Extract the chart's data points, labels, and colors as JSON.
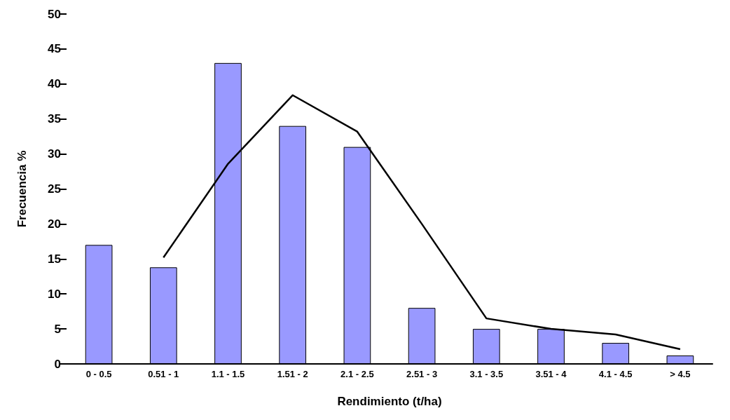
{
  "chart_data": {
    "type": "bar",
    "xlabel": "Rendimiento (t/ha)",
    "ylabel": "Frecuencia %",
    "categories": [
      "0 - 0.5",
      "0.51 - 1",
      "1.1 - 1.5",
      "1.51 - 2",
      "2.1 - 2.5",
      "2.51 - 3",
      "3.1 - 3.5",
      "3.51 - 4",
      "4.1 - 4.5",
      "> 4.5"
    ],
    "series": [
      {
        "color": "#9999ff",
        "values": [
          17,
          13.8,
          43,
          34,
          31,
          8,
          5,
          5,
          3,
          1.2
        ]
      },
      {
        "type": "line",
        "color": "#000000",
        "values": [
          null,
          15.2,
          28.6,
          38.4,
          33.2,
          20,
          6.5,
          5,
          4.2,
          2.1
        ]
      }
    ],
    "ylim": [
      0,
      50
    ],
    "yticks": [
      0,
      5,
      10,
      15,
      20,
      25,
      30,
      35,
      40,
      45,
      50
    ],
    "grid": false,
    "marker": "none",
    "line_style": "solid"
  }
}
